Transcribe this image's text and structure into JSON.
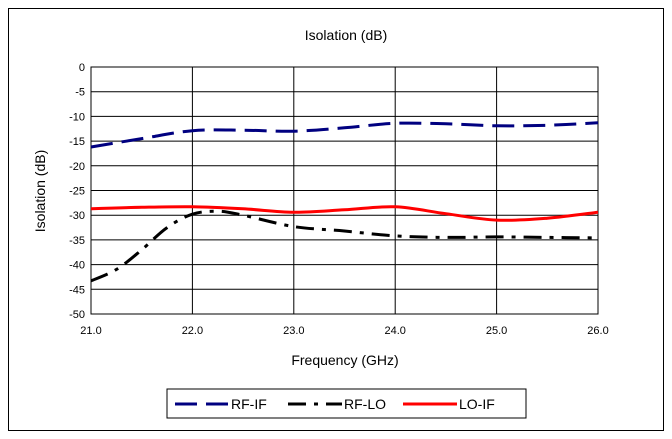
{
  "chart_data": {
    "type": "line",
    "title": "Isolation (dB)",
    "xlabel": "Frequency (GHz)",
    "ylabel": "Isolation (dB)",
    "xlim": [
      21.0,
      26.0
    ],
    "ylim": [
      -50,
      0
    ],
    "x_ticks": [
      "21.0",
      "22.0",
      "23.0",
      "24.0",
      "25.0",
      "26.0"
    ],
    "y_ticks": [
      "0",
      "-5",
      "-10",
      "-15",
      "-20",
      "-25",
      "-30",
      "-35",
      "-40",
      "-45",
      "-50"
    ],
    "grid": true,
    "legend_position": "bottom",
    "series": [
      {
        "name": "RF-IF",
        "color": "#000080",
        "style": "dashed",
        "x": [
          21.0,
          21.5,
          22.0,
          22.5,
          23.0,
          23.5,
          24.0,
          24.5,
          25.0,
          25.5,
          26.0
        ],
        "values": [
          -16.2,
          -14.5,
          -12.9,
          -12.8,
          -13.0,
          -12.3,
          -11.4,
          -11.5,
          -11.9,
          -11.8,
          -11.3
        ]
      },
      {
        "name": "RF-LO",
        "color": "#000000",
        "style": "dashdot",
        "x": [
          21.0,
          21.25,
          21.5,
          21.75,
          22.0,
          22.25,
          22.5,
          23.0,
          23.5,
          24.0,
          24.5,
          25.0,
          25.5,
          26.0
        ],
        "values": [
          -43.3,
          -41.0,
          -37.0,
          -32.5,
          -29.8,
          -29.2,
          -30.0,
          -32.3,
          -33.2,
          -34.2,
          -34.5,
          -34.4,
          -34.5,
          -34.6
        ]
      },
      {
        "name": "LO-IF",
        "color": "#ff0000",
        "style": "solid",
        "x": [
          21.0,
          21.5,
          22.0,
          22.5,
          23.0,
          23.5,
          24.0,
          24.5,
          25.0,
          25.5,
          26.0
        ],
        "values": [
          -28.7,
          -28.4,
          -28.3,
          -28.7,
          -29.4,
          -28.9,
          -28.3,
          -29.7,
          -31.0,
          -30.6,
          -29.4
        ]
      }
    ]
  }
}
